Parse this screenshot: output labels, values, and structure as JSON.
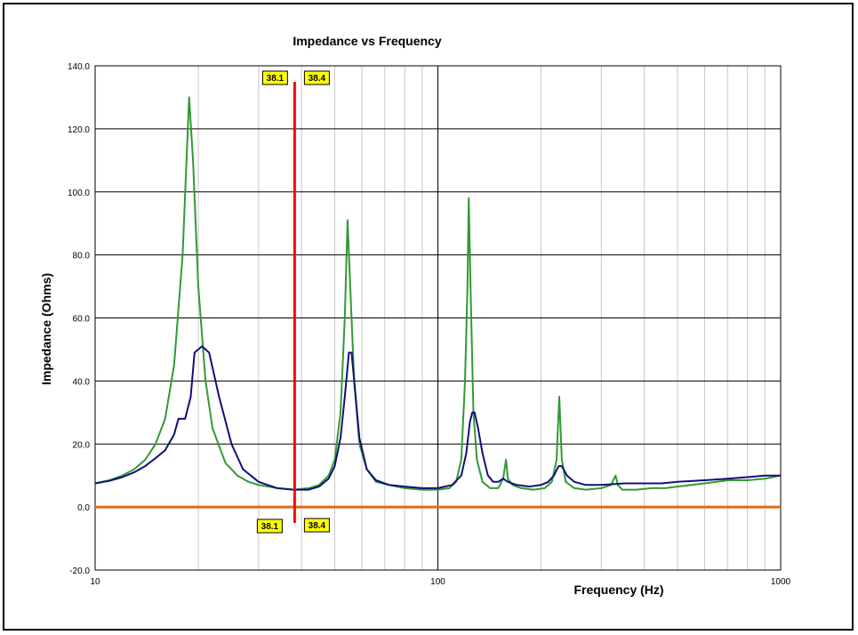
{
  "chart_data": {
    "type": "line",
    "title": "Impedance vs Frequency",
    "xlabel": "Frequency (Hz)",
    "ylabel": "Impedance (Ohms)",
    "x_scale": "log",
    "xlim": [
      10,
      1000
    ],
    "ylim": [
      -20,
      140
    ],
    "grid": true,
    "x_tick_labels": [
      "10",
      "100",
      "1000"
    ],
    "y_tick_labels": [
      "140.0",
      "120.0",
      "100.0",
      "80.0",
      "60.0",
      "40.0",
      "20.0",
      "0.0",
      "-20.0"
    ],
    "y_ticks": [
      140,
      120,
      100,
      80,
      60,
      40,
      20,
      0,
      -20
    ],
    "cursor": {
      "x": 38.2,
      "labels_left": "38.1",
      "labels_right": "38.4",
      "color": "#ff0000"
    },
    "baseline_color": "#e06c1c",
    "series": [
      {
        "color": "#339933",
        "points": [
          [
            10,
            7.5
          ],
          [
            11,
            8.5
          ],
          [
            12,
            10
          ],
          [
            13,
            12
          ],
          [
            14,
            15
          ],
          [
            15,
            20
          ],
          [
            16,
            28
          ],
          [
            17,
            45
          ],
          [
            18,
            80
          ],
          [
            18.8,
            130
          ],
          [
            19.3,
            110
          ],
          [
            20,
            70
          ],
          [
            21,
            40
          ],
          [
            22,
            25
          ],
          [
            24,
            14
          ],
          [
            26,
            10
          ],
          [
            28,
            8
          ],
          [
            30,
            7
          ],
          [
            34,
            6
          ],
          [
            38,
            5.5
          ],
          [
            42,
            6
          ],
          [
            45,
            7
          ],
          [
            48,
            10
          ],
          [
            50,
            15
          ],
          [
            52,
            30
          ],
          [
            53.5,
            60
          ],
          [
            54.5,
            91
          ],
          [
            55.5,
            70
          ],
          [
            57,
            40
          ],
          [
            59,
            20
          ],
          [
            62,
            12
          ],
          [
            66,
            8
          ],
          [
            72,
            7
          ],
          [
            80,
            6
          ],
          [
            90,
            5.5
          ],
          [
            100,
            5.5
          ],
          [
            108,
            6
          ],
          [
            113,
            8
          ],
          [
            117,
            15
          ],
          [
            120,
            40
          ],
          [
            122,
            70
          ],
          [
            123,
            98
          ],
          [
            124.5,
            70
          ],
          [
            127,
            30
          ],
          [
            130,
            15
          ],
          [
            135,
            8
          ],
          [
            142,
            6
          ],
          [
            150,
            6
          ],
          [
            155,
            9
          ],
          [
            158,
            15
          ],
          [
            160,
            9
          ],
          [
            165,
            7
          ],
          [
            175,
            6
          ],
          [
            190,
            5.5
          ],
          [
            205,
            6
          ],
          [
            215,
            8
          ],
          [
            222,
            15
          ],
          [
            226,
            35
          ],
          [
            230,
            15
          ],
          [
            236,
            8
          ],
          [
            250,
            6
          ],
          [
            270,
            5.5
          ],
          [
            300,
            6
          ],
          [
            320,
            7
          ],
          [
            330,
            10
          ],
          [
            335,
            7
          ],
          [
            345,
            5.5
          ],
          [
            380,
            5.5
          ],
          [
            420,
            6
          ],
          [
            460,
            6
          ],
          [
            500,
            6.5
          ],
          [
            550,
            7
          ],
          [
            600,
            7.5
          ],
          [
            650,
            8
          ],
          [
            700,
            8.5
          ],
          [
            800,
            8.5
          ],
          [
            900,
            9
          ],
          [
            950,
            9.5
          ],
          [
            1000,
            10
          ]
        ]
      },
      {
        "color": "#111177",
        "points": [
          [
            10,
            7.5
          ],
          [
            11,
            8.3
          ],
          [
            12,
            9.5
          ],
          [
            13,
            11
          ],
          [
            14,
            13
          ],
          [
            15,
            15.5
          ],
          [
            16,
            18
          ],
          [
            17,
            23
          ],
          [
            17.5,
            28
          ],
          [
            18.3,
            28
          ],
          [
            19,
            35
          ],
          [
            19.5,
            49
          ],
          [
            20.5,
            51
          ],
          [
            21.5,
            49
          ],
          [
            23,
            35
          ],
          [
            25,
            20
          ],
          [
            27,
            12
          ],
          [
            30,
            8
          ],
          [
            34,
            6
          ],
          [
            38,
            5.5
          ],
          [
            42,
            5.5
          ],
          [
            45,
            6.5
          ],
          [
            48,
            9
          ],
          [
            50,
            13
          ],
          [
            52,
            22
          ],
          [
            53.5,
            35
          ],
          [
            55,
            49
          ],
          [
            56,
            49
          ],
          [
            57,
            40
          ],
          [
            59,
            22
          ],
          [
            62,
            12
          ],
          [
            66,
            8.5
          ],
          [
            72,
            7
          ],
          [
            80,
            6.5
          ],
          [
            90,
            6
          ],
          [
            100,
            6
          ],
          [
            110,
            7
          ],
          [
            117,
            10
          ],
          [
            121,
            17
          ],
          [
            124,
            27
          ],
          [
            126,
            30
          ],
          [
            128,
            30
          ],
          [
            131,
            25
          ],
          [
            135,
            17
          ],
          [
            140,
            10
          ],
          [
            145,
            8
          ],
          [
            150,
            8
          ],
          [
            155,
            9
          ],
          [
            160,
            8
          ],
          [
            170,
            7
          ],
          [
            185,
            6.5
          ],
          [
            200,
            7
          ],
          [
            210,
            8
          ],
          [
            218,
            10
          ],
          [
            225,
            13
          ],
          [
            230,
            13
          ],
          [
            238,
            10
          ],
          [
            250,
            8
          ],
          [
            270,
            7
          ],
          [
            300,
            7
          ],
          [
            350,
            7.5
          ],
          [
            400,
            7.5
          ],
          [
            450,
            7.5
          ],
          [
            500,
            8
          ],
          [
            600,
            8.5
          ],
          [
            700,
            9
          ],
          [
            800,
            9.5
          ],
          [
            900,
            10
          ],
          [
            950,
            10
          ],
          [
            1000,
            10
          ]
        ]
      }
    ]
  }
}
